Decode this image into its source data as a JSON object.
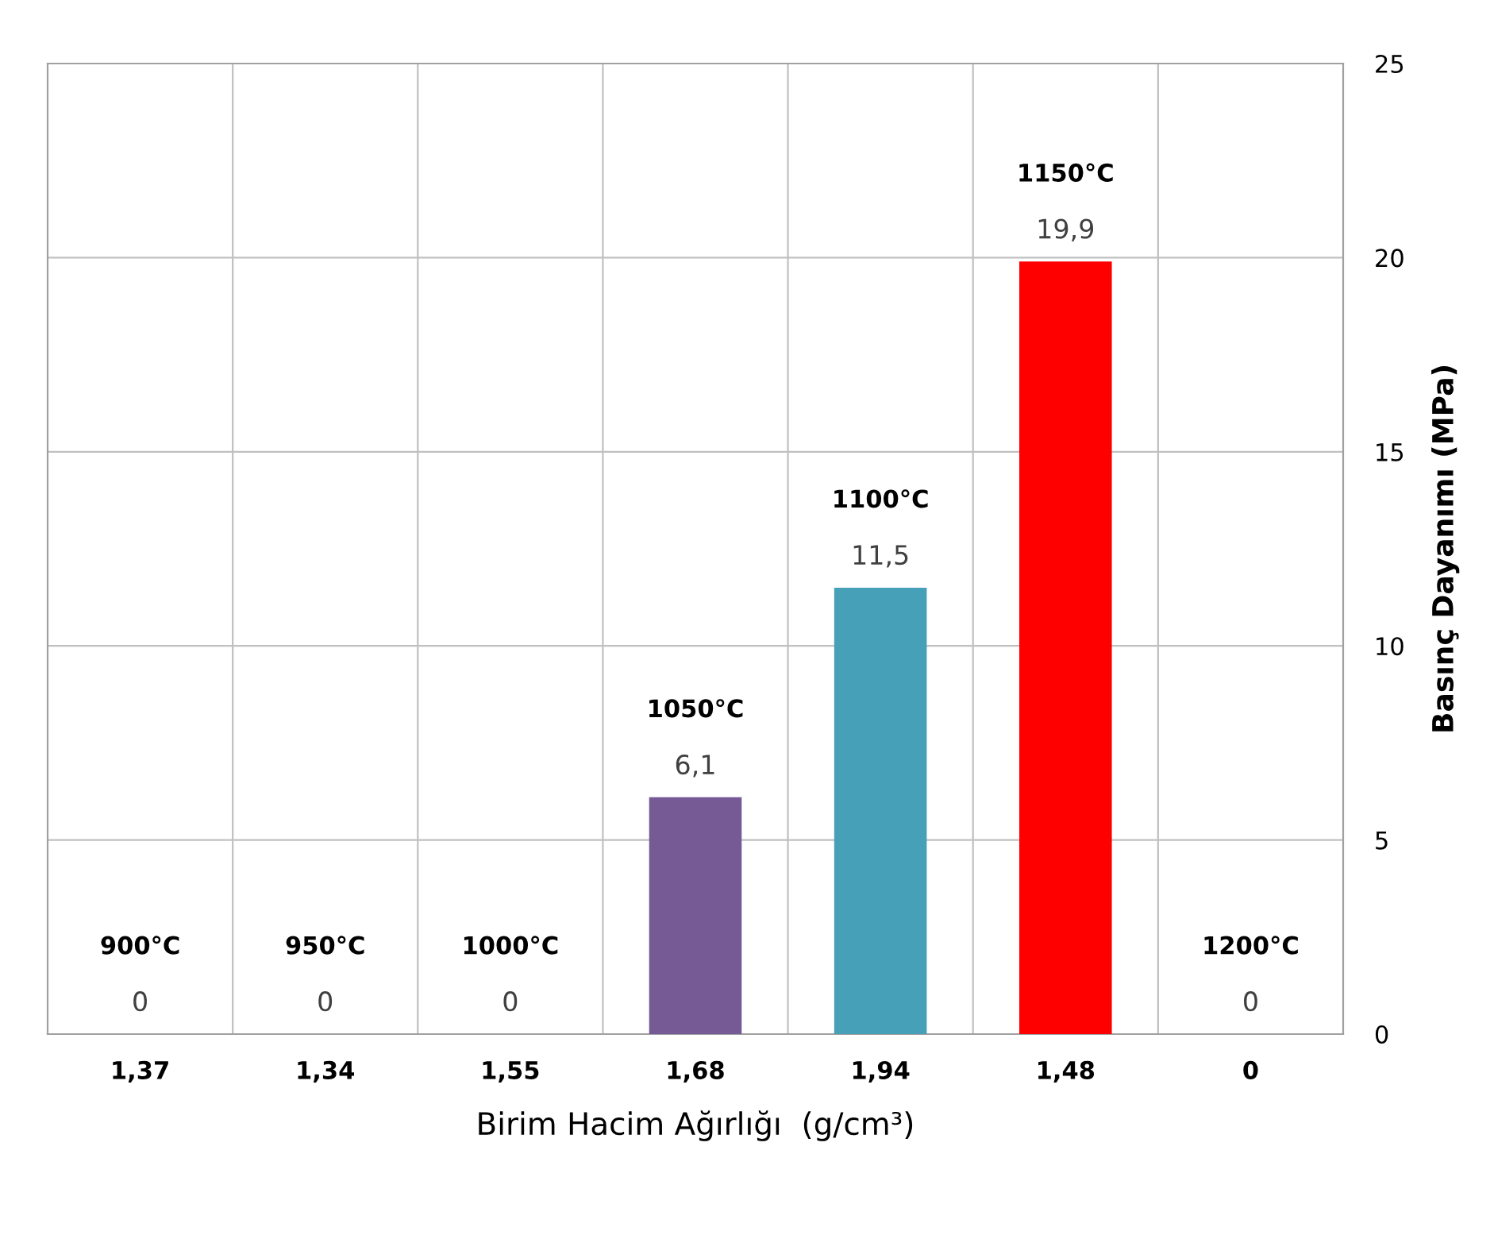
{
  "chart_data": {
    "type": "bar",
    "categories": [
      "1,37",
      "1,34",
      "1,55",
      "1,68",
      "1,94",
      "1,48",
      "0"
    ],
    "values": [
      0,
      0,
      0,
      6.1,
      11.5,
      19.9,
      0
    ],
    "colors": [
      "#4472c4",
      "#4472c4",
      "#4472c4",
      "#765a96",
      "#45a0b8",
      "#ff0000",
      "#4472c4"
    ],
    "value_labels": [
      "0",
      "0",
      "0",
      "6,1",
      "11,5",
      "19,9",
      "0"
    ],
    "annotations": [
      "900°C",
      "950°C",
      "1000°C",
      "1050°C",
      "1100°C",
      "1150°C",
      "1200°C"
    ],
    "xlabel": "Birim Hacim Ağırlığı  (g/cm³)",
    "ylabel": "Basınç Dayanımı (MPa)",
    "ylim": [
      0,
      25
    ],
    "yticks": [
      0,
      5,
      10,
      15,
      20,
      25
    ],
    "grid": true,
    "legend": false
  }
}
